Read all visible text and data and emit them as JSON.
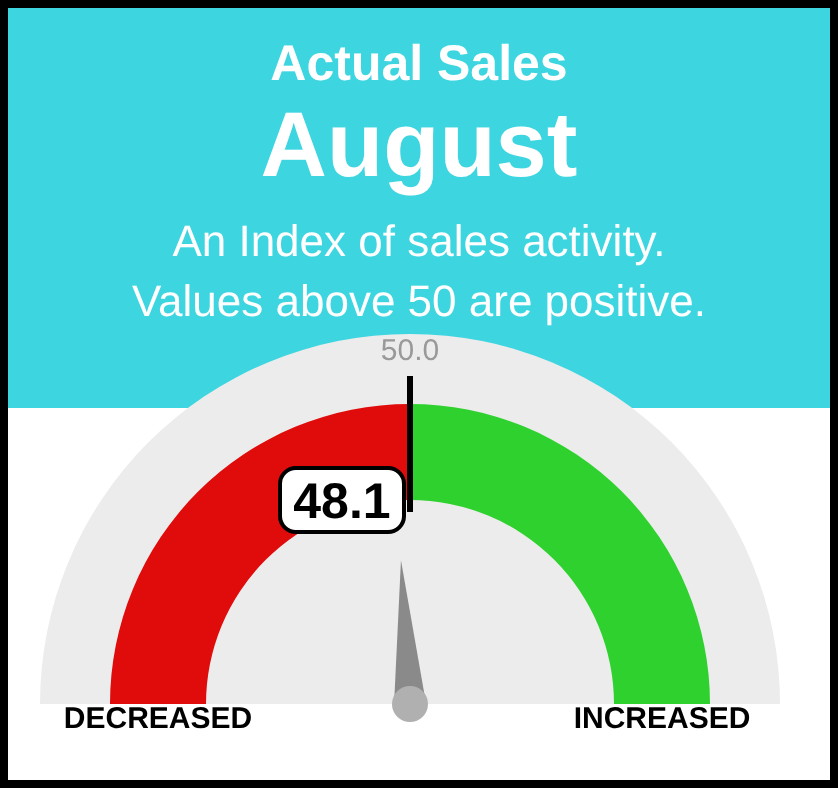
{
  "chart_data": {
    "type": "donut",
    "title": "Actual Sales",
    "subtitle": "August",
    "categories": [
      "DECREASED",
      "INCREASED"
    ],
    "values": [
      50,
      50
    ],
    "colors": [
      "#e00b0b",
      "#2fd12f"
    ],
    "needle": "DECREASED",
    "annotations": [
      "An Index of sales activity.",
      "Values above 50 are positive.",
      "50.0",
      "48.1"
    ]
  }
}
